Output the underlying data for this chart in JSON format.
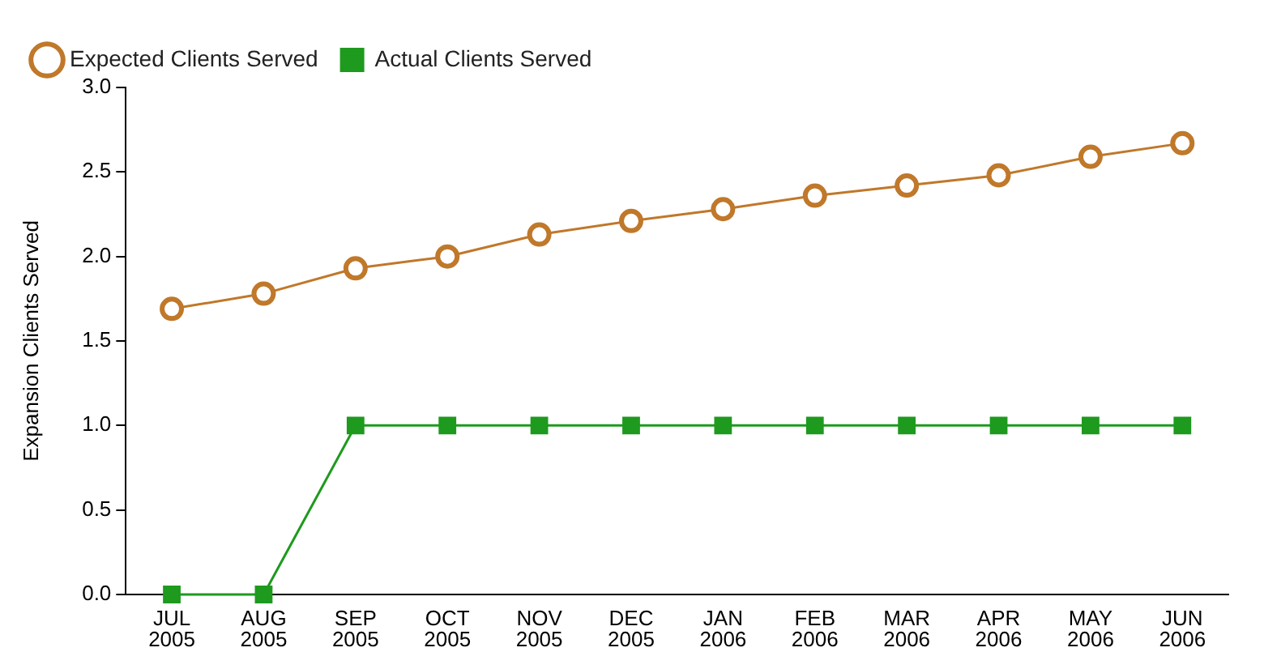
{
  "chart_data": {
    "type": "line",
    "ylabel": "Expansion Clients Served",
    "categories": [
      "JUL 2005",
      "AUG 2005",
      "SEP 2005",
      "OCT 2005",
      "NOV 2005",
      "DEC 2005",
      "JAN 2006",
      "FEB 2006",
      "MAR 2006",
      "APR 2006",
      "MAY 2006",
      "JUN 2006"
    ],
    "series": [
      {
        "name": "Expected Clients Served",
        "color": "#c0782a",
        "marker": "circle",
        "values": [
          1.69,
          1.78,
          1.93,
          2.0,
          2.13,
          2.21,
          2.28,
          2.36,
          2.42,
          2.48,
          2.59,
          2.67
        ]
      },
      {
        "name": "Actual Clients Served",
        "color": "#1e9a1e",
        "marker": "square",
        "values": [
          0,
          0,
          1,
          1,
          1,
          1,
          1,
          1,
          1,
          1,
          1,
          1
        ]
      }
    ],
    "ylim": [
      0,
      3
    ],
    "yticks": [
      {
        "value": 0,
        "label": "0.0"
      },
      0.5,
      {
        "value": 1,
        "label": "1.0"
      },
      1.5,
      {
        "value": 2,
        "label": "2.0"
      },
      2.5,
      {
        "value": 3,
        "label": "3.0"
      }
    ],
    "grid": false,
    "legend": "top left"
  }
}
